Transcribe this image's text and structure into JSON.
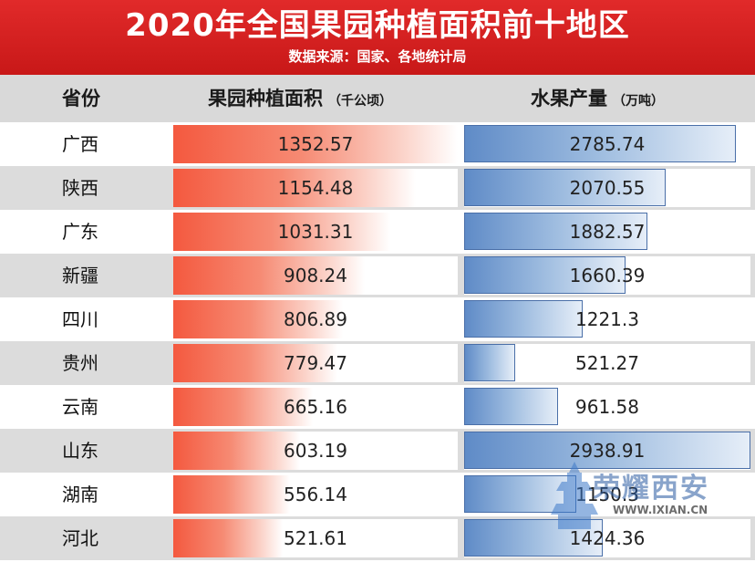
{
  "title": "2020年全国果园种植面积前十地区",
  "subtitle": "数据来源：国家、各地统计局",
  "columns": {
    "province": "省份",
    "area": "果园种植面积",
    "area_unit": "（千公顷）",
    "production": "水果产量",
    "production_unit": "（万吨）"
  },
  "chart_data": {
    "type": "bar",
    "categories": [
      "广西",
      "陕西",
      "广东",
      "新疆",
      "四川",
      "贵州",
      "云南",
      "山东",
      "湖南",
      "河北"
    ],
    "series": [
      {
        "name": "果园种植面积",
        "values": [
          1352.57,
          1154.48,
          1031.31,
          908.24,
          806.89,
          779.47,
          665.16,
          603.19,
          556.14,
          521.61
        ]
      },
      {
        "name": "水果产量",
        "values": [
          2785.74,
          2070.55,
          1882.57,
          1660.39,
          1221.3,
          521.27,
          961.58,
          2938.91,
          1150.3,
          1424.36
        ]
      }
    ],
    "value_labels": {
      "area": [
        "1352.57",
        "1154.48",
        "1031.31",
        "908.24",
        "806.89",
        "779.47",
        "665.16",
        "603.19",
        "556.14",
        "521.61"
      ],
      "production": [
        "2785.74",
        "2070.55",
        "1882.57",
        "1660.39",
        "1221.3",
        "521.27",
        "961.58",
        "2938.91",
        "1150.3",
        "1424.36"
      ]
    },
    "colors": {
      "area": "#f4593f",
      "production": "#5f8bc7"
    }
  },
  "watermark": {
    "text": "荣耀西安",
    "url": "WWW.IXIAN.CN"
  }
}
